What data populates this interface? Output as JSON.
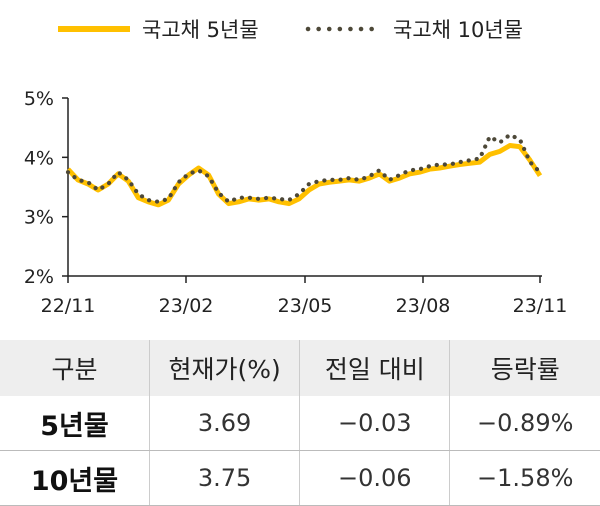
{
  "chart_data": {
    "type": "line",
    "title": "",
    "xlabel": "",
    "ylabel": "",
    "ylim": [
      2,
      5
    ],
    "y_ticks": [
      "2%",
      "3%",
      "4%",
      "5%"
    ],
    "x_ticks": [
      "22/11",
      "23/02",
      "23/05",
      "23/08",
      "23/11"
    ],
    "grid": false,
    "legend_position": "top",
    "series": [
      {
        "name": "국고채 5년물",
        "color": "#FFC000",
        "style": "solid",
        "x": [
          "22/11",
          "22/11",
          "22/11",
          "22/12",
          "22/12",
          "22/12",
          "22/12",
          "23/01",
          "23/01",
          "23/01",
          "23/01",
          "23/02",
          "23/02",
          "23/02",
          "23/02",
          "23/03",
          "23/03",
          "23/03",
          "23/03",
          "23/04",
          "23/04",
          "23/04",
          "23/04",
          "23/05",
          "23/05",
          "23/05",
          "23/05",
          "23/06",
          "23/06",
          "23/06",
          "23/06",
          "23/07",
          "23/07",
          "23/07",
          "23/07",
          "23/08",
          "23/08",
          "23/08",
          "23/08",
          "23/09",
          "23/09",
          "23/09",
          "23/09",
          "23/10",
          "23/10",
          "23/10",
          "23/10",
          "23/11"
        ],
        "values": [
          3.8,
          3.62,
          3.55,
          3.45,
          3.55,
          3.72,
          3.6,
          3.32,
          3.25,
          3.2,
          3.28,
          3.55,
          3.7,
          3.82,
          3.7,
          3.38,
          3.22,
          3.25,
          3.3,
          3.28,
          3.3,
          3.25,
          3.22,
          3.3,
          3.45,
          3.55,
          3.58,
          3.6,
          3.62,
          3.6,
          3.65,
          3.72,
          3.6,
          3.65,
          3.72,
          3.75,
          3.8,
          3.82,
          3.85,
          3.88,
          3.9,
          3.92,
          4.05,
          4.1,
          4.2,
          4.18,
          3.95,
          3.69
        ]
      },
      {
        "name": "국고채 10년물",
        "color": "#4D4838",
        "style": "dotted",
        "x": [
          "22/11",
          "22/11",
          "22/11",
          "22/12",
          "22/12",
          "22/12",
          "22/12",
          "23/01",
          "23/01",
          "23/01",
          "23/01",
          "23/02",
          "23/02",
          "23/02",
          "23/02",
          "23/03",
          "23/03",
          "23/03",
          "23/03",
          "23/04",
          "23/04",
          "23/04",
          "23/04",
          "23/05",
          "23/05",
          "23/05",
          "23/05",
          "23/06",
          "23/06",
          "23/06",
          "23/06",
          "23/07",
          "23/07",
          "23/07",
          "23/07",
          "23/08",
          "23/08",
          "23/08",
          "23/08",
          "23/09",
          "23/09",
          "23/09",
          "23/09",
          "23/10",
          "23/10",
          "23/10",
          "23/10",
          "23/11"
        ],
        "values": [
          3.75,
          3.62,
          3.58,
          3.45,
          3.55,
          3.75,
          3.62,
          3.38,
          3.28,
          3.25,
          3.3,
          3.58,
          3.72,
          3.78,
          3.68,
          3.4,
          3.25,
          3.32,
          3.32,
          3.3,
          3.32,
          3.3,
          3.28,
          3.38,
          3.55,
          3.6,
          3.62,
          3.62,
          3.65,
          3.62,
          3.68,
          3.78,
          3.62,
          3.7,
          3.78,
          3.8,
          3.85,
          3.88,
          3.88,
          3.92,
          3.95,
          3.98,
          4.35,
          4.25,
          4.38,
          4.3,
          3.92,
          3.75
        ]
      }
    ]
  },
  "table": {
    "headers": [
      "구분",
      "현재가(%)",
      "전일 대비",
      "등락률"
    ],
    "rows": [
      [
        "5년물",
        "3.69",
        "−0.03",
        "−0.89%"
      ],
      [
        "10년물",
        "3.75",
        "−0.06",
        "−1.58%"
      ]
    ]
  }
}
